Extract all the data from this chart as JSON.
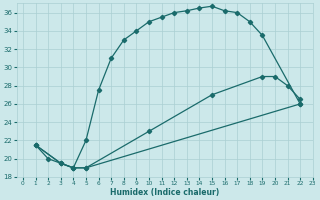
{
  "xlabel": "Humidex (Indice chaleur)",
  "xlim": [
    -0.5,
    23
  ],
  "ylim": [
    18,
    37
  ],
  "yticks": [
    18,
    20,
    22,
    24,
    26,
    28,
    30,
    32,
    34,
    36
  ],
  "xticks": [
    0,
    1,
    2,
    3,
    4,
    5,
    6,
    7,
    8,
    9,
    10,
    11,
    12,
    13,
    14,
    15,
    16,
    17,
    18,
    19,
    20,
    21,
    22,
    23
  ],
  "bg_color": "#cce8ea",
  "grid_color": "#aacfd2",
  "line_color": "#1a6b6b",
  "line1_x": [
    1,
    2,
    3,
    4,
    5,
    6,
    7,
    8,
    9,
    10,
    11,
    12,
    13,
    14,
    15,
    16,
    17,
    18,
    19,
    22
  ],
  "line1_y": [
    21.5,
    20,
    19.5,
    19,
    22,
    27.5,
    31,
    33,
    34,
    35,
    35.5,
    36,
    36.2,
    36.5,
    36.7,
    36.2,
    36,
    35,
    33.5,
    26
  ],
  "line2_x": [
    1,
    3,
    4,
    5,
    22
  ],
  "line2_y": [
    21.5,
    19.5,
    19,
    19,
    26
  ],
  "line3_x": [
    1,
    3,
    4,
    5,
    10,
    15,
    19,
    20,
    21,
    22
  ],
  "line3_y": [
    21.5,
    19.5,
    19,
    19,
    23,
    27,
    29,
    29,
    28,
    26.5
  ]
}
